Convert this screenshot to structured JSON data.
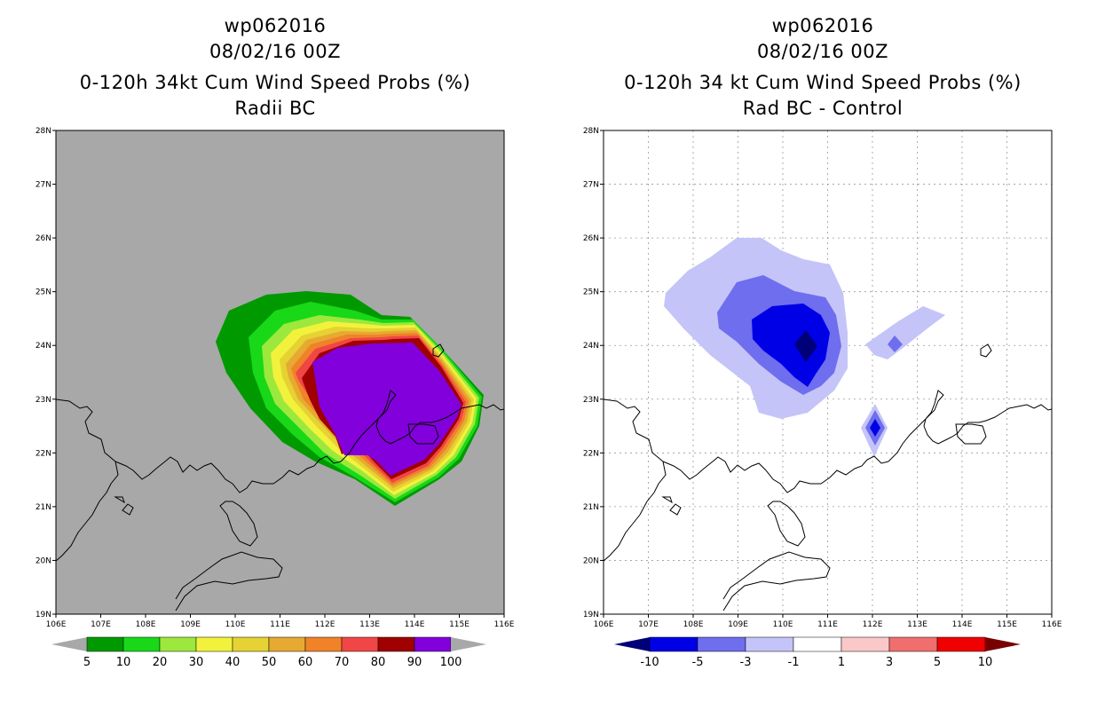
{
  "left_panel": {
    "title_lines": [
      "wp062016",
      "08/02/16 00Z",
      "0-120h 34kt Cum Wind Speed Probs (%)",
      "Radii BC"
    ],
    "colorbar": {
      "labels": [
        "5",
        "10",
        "20",
        "30",
        "40",
        "50",
        "60",
        "70",
        "80",
        "90",
        "100"
      ],
      "colors": [
        "#009a00",
        "#18d818",
        "#9de83c",
        "#f2f23c",
        "#e6d232",
        "#e6aa32",
        "#f08228",
        "#f04646",
        "#a00000",
        "#8200dc"
      ],
      "under_color": "#a8a8a8",
      "over_color": "#a8a8a8"
    },
    "background_color": "#a8a8a8"
  },
  "right_panel": {
    "title_lines": [
      "wp062016",
      "08/02/16 00Z",
      "0-120h 34 kt Cum Wind Speed Probs (%)",
      "Rad BC - Control"
    ],
    "colorbar": {
      "labels": [
        "-10",
        "-5",
        "-3",
        "-1",
        "1",
        "3",
        "5",
        "10"
      ],
      "colors": [
        "#0000e6",
        "#6e6eee",
        "#c4c4f8",
        "#ffffff",
        "#fac8c8",
        "#f06e6e",
        "#f00000"
      ],
      "under_color": "#000078",
      "over_color": "#780000"
    }
  },
  "axes": {
    "lon_ticks": [
      "106E",
      "107E",
      "108E",
      "109E",
      "110E",
      "111E",
      "112E",
      "113E",
      "114E",
      "115E",
      "116E"
    ],
    "lat_ticks": [
      "19N",
      "20N",
      "21N",
      "22N",
      "23N",
      "24N",
      "25N",
      "26N",
      "27N",
      "28N"
    ],
    "lon_range": [
      106,
      116
    ],
    "lat_range": [
      19,
      28
    ]
  },
  "chart_data": [
    {
      "type": "map-contour",
      "title": "0-120h 34kt Cum Wind Speed Probs (%) - Radii BC",
      "variable": "cumulative 34kt wind speed probability (%)",
      "levels": [
        5,
        10,
        20,
        30,
        40,
        50,
        60,
        70,
        80,
        90,
        100
      ],
      "max_region_center": [
        113.5,
        23.0
      ],
      "xlim": [
        106,
        116
      ],
      "ylim": [
        19,
        28
      ]
    },
    {
      "type": "map-contour",
      "title": "0-120h 34 kt Cum Wind Speed Probs (%) - Rad BC - Control",
      "variable": "difference in probability (%)",
      "levels": [
        -10,
        -5,
        -3,
        -1,
        1,
        3,
        5,
        10
      ],
      "min_center": [
        110.5,
        23.95
      ],
      "secondary_minima": [
        [
          112.0,
          22.5
        ],
        [
          112.5,
          24.0
        ]
      ],
      "xlim": [
        106,
        116
      ],
      "ylim": [
        19,
        28
      ]
    }
  ]
}
